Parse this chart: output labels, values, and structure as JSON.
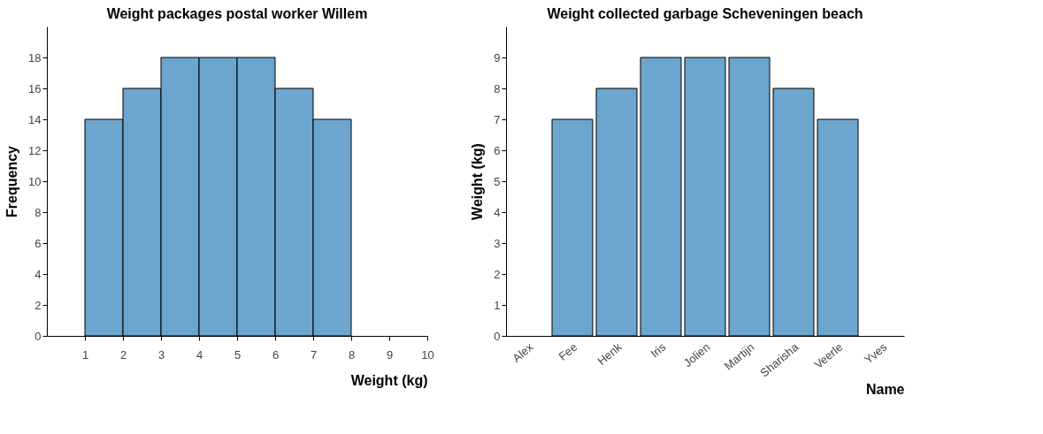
{
  "chart_data": [
    {
      "type": "histogram",
      "title": "Weight packages postal worker Willem",
      "xlabel": "Weight (kg)",
      "ylabel": "Frequency",
      "bins": [
        1,
        2,
        3,
        4,
        5,
        6,
        7,
        8
      ],
      "values": [
        14,
        16,
        18,
        18,
        18,
        16,
        14
      ],
      "color": "#6ca5cd",
      "xlim": [
        0,
        10
      ],
      "xticks": [
        1,
        2,
        3,
        4,
        5,
        6,
        7,
        8,
        9,
        10
      ],
      "ylim": [
        0,
        20
      ],
      "yticks": [
        0,
        2,
        4,
        6,
        8,
        10,
        12,
        14,
        16,
        18
      ]
    },
    {
      "type": "bar",
      "title": "Weight collected garbage Scheveningen beach",
      "xlabel": "Name",
      "ylabel": "Weight (kg)",
      "categories": [
        "Alex",
        "Fee",
        "Henk",
        "Iris",
        "Jolien",
        "Martijn",
        "Sharisha",
        "Veerle",
        "Yves"
      ],
      "values": [
        null,
        7,
        8,
        9,
        9,
        9,
        8,
        7,
        null
      ],
      "color": "#6ca5cd",
      "ylim": [
        0,
        10
      ],
      "yticks": [
        0,
        1,
        2,
        3,
        4,
        5,
        6,
        7,
        8,
        9
      ]
    }
  ]
}
